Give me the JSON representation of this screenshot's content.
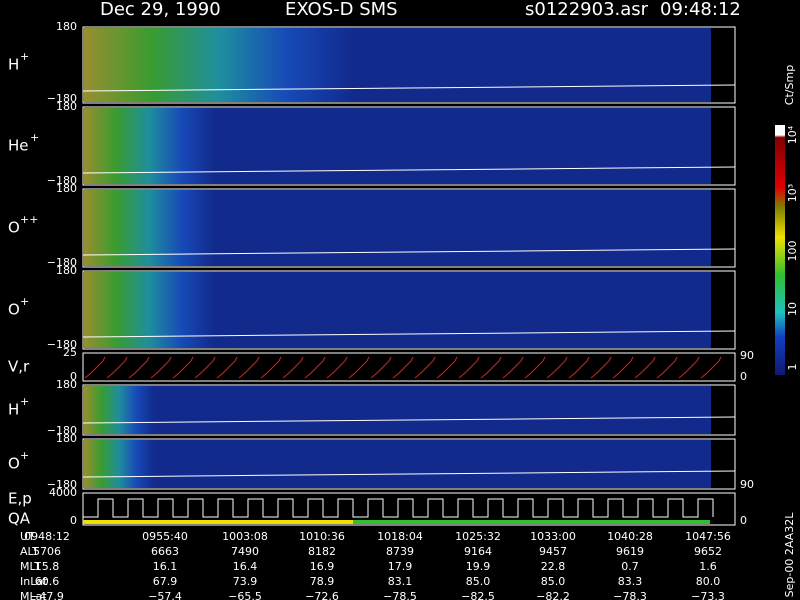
{
  "header": {
    "date": "Dec 29, 1990",
    "instrument": "EXOS-D SMS",
    "file": "s0122903.asr",
    "time": "09:48:12"
  },
  "panels": [
    {
      "label": "H",
      "sup": "+",
      "left": [
        "180",
        "−180"
      ]
    },
    {
      "label": "He",
      "sup": "+",
      "left": [
        "180",
        "−180"
      ]
    },
    {
      "label": "O",
      "sup": "++",
      "left": [
        "180",
        "−180"
      ]
    },
    {
      "label": "O",
      "sup": "+",
      "left": [
        "180",
        "−180"
      ]
    },
    {
      "label": "V,r",
      "left": [
        "25",
        "0"
      ],
      "right": [
        "90",
        "0"
      ]
    },
    {
      "label": "H",
      "sup": "+",
      "left": [
        "180",
        "−180"
      ]
    },
    {
      "label": "O",
      "sup": "+",
      "left": [
        "180",
        "−180"
      ],
      "right": [
        "90"
      ]
    },
    {
      "label": "E,p",
      "label2": "QA",
      "left": [
        "4000",
        "0"
      ],
      "right": [
        "0"
      ]
    }
  ],
  "colorbar": {
    "unit": "Ct/Smp",
    "labels": [
      "10⁴",
      "10³",
      "100",
      "10",
      "1"
    ]
  },
  "side_note": "Sep-00  2AA32L",
  "table": {
    "rows": [
      [
        "UT",
        "0948:12",
        "0955:40",
        "1003:08",
        "1010:36",
        "1018:04",
        "1025:32",
        "1033:00",
        "1040:28",
        "1047:56"
      ],
      [
        "ALT",
        "5706",
        "6663",
        "7490",
        "8182",
        "8739",
        "9164",
        "9457",
        "9619",
        "9652"
      ],
      [
        "MLT",
        "15.8",
        "16.1",
        "16.4",
        "16.9",
        "17.9",
        "19.9",
        "22.8",
        "0.7",
        "1.6"
      ],
      [
        "InLat",
        "60.6",
        "67.9",
        "73.9",
        "78.9",
        "83.1",
        "85.0",
        "85.0",
        "83.3",
        "80.0"
      ],
      [
        "MLat",
        "−47.9",
        "−57.4",
        "−65.5",
        "−72.6",
        "−78.5",
        "−82.5",
        "−82.2",
        "−78.3",
        "−73.3"
      ]
    ]
  }
}
